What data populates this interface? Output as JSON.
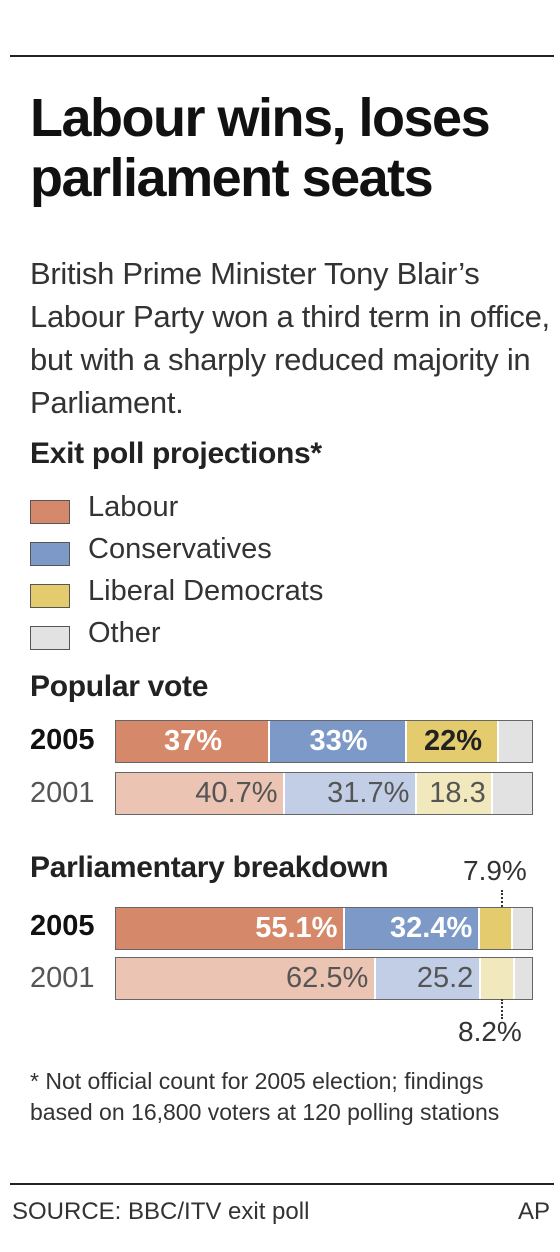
{
  "headline": "Labour wins, loses parliament seats",
  "dek": "British Prime Minister Tony Blair’s Labour Party won a third term in office, but with a sharply reduced majority in Parliament.",
  "legend_title": "Exit poll projections*",
  "colors": {
    "labour_2005": "#d5896a",
    "labour_2001": "#ecc4b3",
    "conservative_2005": "#7d99c8",
    "conservative_2001": "#c1cee6",
    "libdem_2005": "#e4cc6e",
    "libdem_2001": "#f2e8bd",
    "other": "#e2e2e2"
  },
  "legend": [
    {
      "label": "Labour",
      "color": "#d5896a"
    },
    {
      "label": "Conservatives",
      "color": "#7d99c8"
    },
    {
      "label": "Liberal Democrats",
      "color": "#e4cc6e"
    },
    {
      "label": "Other",
      "color": "#e2e2e2"
    }
  ],
  "chart_data": [
    {
      "type": "bar",
      "stacked": true,
      "orientation": "horizontal",
      "title": "Popular vote",
      "categories": [
        "2005",
        "2001"
      ],
      "series": [
        {
          "name": "Labour",
          "values": [
            37,
            40.7
          ],
          "labels": [
            "37%",
            "40.7%"
          ]
        },
        {
          "name": "Conservatives",
          "values": [
            33,
            31.7
          ],
          "labels": [
            "33%",
            "31.7%"
          ]
        },
        {
          "name": "Liberal Democrats",
          "values": [
            22,
            18.3
          ],
          "labels": [
            "22%",
            "18.3"
          ]
        },
        {
          "name": "Other",
          "values": [
            8,
            9.3
          ],
          "labels": [
            "",
            ""
          ]
        }
      ]
    },
    {
      "type": "bar",
      "stacked": true,
      "orientation": "horizontal",
      "title": "Parliamentary breakdown",
      "categories": [
        "2005",
        "2001"
      ],
      "series": [
        {
          "name": "Labour",
          "values": [
            55.1,
            62.5
          ],
          "labels": [
            "55.1%",
            "62.5%"
          ]
        },
        {
          "name": "Conservatives",
          "values": [
            32.4,
            25.2
          ],
          "labels": [
            "32.4%",
            "25.2"
          ]
        },
        {
          "name": "Liberal Democrats",
          "values": [
            7.9,
            8.2
          ],
          "labels": [
            "7.9%",
            "8.2%"
          ]
        },
        {
          "name": "Other",
          "values": [
            4.6,
            4.1
          ],
          "labels": [
            "",
            ""
          ]
        }
      ]
    }
  ],
  "footnote": "* Not official count for 2005 election; findings based on 16,800 voters at 120 polling stations",
  "source": "SOURCE: BBC/ITV exit poll",
  "credit": "AP"
}
